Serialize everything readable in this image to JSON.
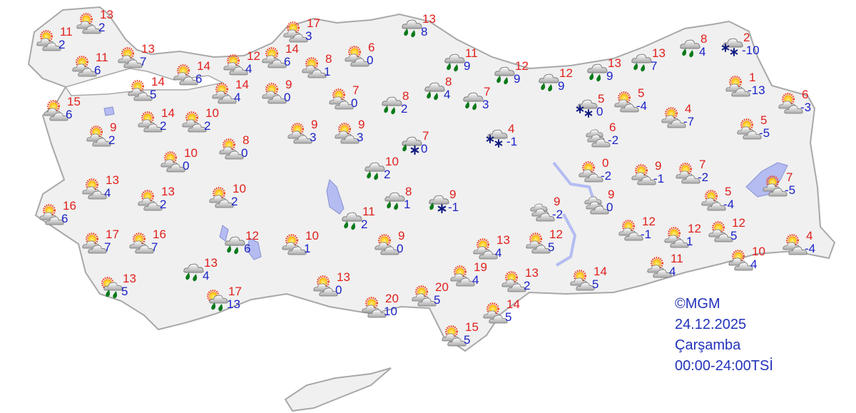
{
  "map": {
    "land_color": "#f0f0f0",
    "border_color": "#a8a8a8",
    "water_color": "#b4bcf2"
  },
  "colors": {
    "high_temp": "#e0201c",
    "low_temp": "#1a22c8",
    "rain_drop": "#0a7a1a",
    "snowflake": "#101a80"
  },
  "credit": {
    "source": "©MGM",
    "date": "24.12.2025",
    "weekday": "Çarşamba",
    "period": "00:00-24:00TSİ"
  },
  "stations": [
    {
      "type": "partly-cloudy",
      "high": "11",
      "low": "2"
    },
    {
      "type": "partly-cloudy",
      "high": "13",
      "low": "2"
    },
    {
      "type": "partly-cloudy",
      "high": "11",
      "low": "6"
    },
    {
      "type": "partly-cloudy",
      "high": "13",
      "low": "7"
    },
    {
      "type": "partly-cloudy",
      "high": "15",
      "low": "6"
    },
    {
      "type": "partly-cloudy",
      "high": "14",
      "low": "5"
    },
    {
      "type": "partly-cloudy",
      "high": "14",
      "low": "6"
    },
    {
      "type": "partly-cloudy",
      "high": "12",
      "low": "4"
    },
    {
      "type": "partly-cloudy",
      "high": "14",
      "low": "6"
    },
    {
      "type": "partly-cloudy",
      "high": "17",
      "low": "3"
    },
    {
      "type": "partly-cloudy",
      "high": "8",
      "low": "1"
    },
    {
      "type": "partly-cloudy",
      "high": "6",
      "low": "0"
    },
    {
      "type": "partly-cloudy",
      "high": "14",
      "low": "4"
    },
    {
      "type": "partly-cloudy",
      "high": "9",
      "low": "0"
    },
    {
      "type": "partly-cloudy",
      "high": "7",
      "low": "0"
    },
    {
      "type": "partly-cloudy",
      "high": "14",
      "low": "2"
    },
    {
      "type": "partly-cloudy",
      "high": "10",
      "low": "2"
    },
    {
      "type": "partly-cloudy",
      "high": "9",
      "low": "2"
    },
    {
      "type": "partly-cloudy",
      "high": "8",
      "low": "0"
    },
    {
      "type": "partly-cloudy",
      "high": "10",
      "low": "0"
    },
    {
      "type": "partly-cloudy",
      "high": "9",
      "low": "3"
    },
    {
      "type": "partly-cloudy",
      "high": "9",
      "low": "3"
    },
    {
      "type": "rain",
      "high": "8",
      "low": "2"
    },
    {
      "type": "rain",
      "high": "13",
      "low": "8"
    },
    {
      "type": "rain",
      "high": "11",
      "low": "9"
    },
    {
      "type": "rain",
      "high": "8",
      "low": "4"
    },
    {
      "type": "rain",
      "high": "7",
      "low": "3"
    },
    {
      "type": "rain",
      "high": "12",
      "low": "9"
    },
    {
      "type": "rain",
      "high": "12",
      "low": "9"
    },
    {
      "type": "rain",
      "high": "13",
      "low": "9"
    },
    {
      "type": "rain",
      "high": "13",
      "low": "7"
    },
    {
      "type": "rain",
      "high": "8",
      "low": "4"
    },
    {
      "type": "snow",
      "high": "2",
      "low": "-10"
    },
    {
      "type": "partly-cloudy",
      "high": "1",
      "low": "-13"
    },
    {
      "type": "partly-cloudy",
      "high": "6",
      "low": "-3"
    },
    {
      "type": "partly-cloudy",
      "high": "5",
      "low": "-5"
    },
    {
      "type": "snow",
      "high": "5",
      "low": "0"
    },
    {
      "type": "partly-cloudy",
      "high": "5",
      "low": "-4"
    },
    {
      "type": "partly-cloudy",
      "high": "4",
      "low": "-7"
    },
    {
      "type": "cloudy",
      "high": "6",
      "low": "-2"
    },
    {
      "type": "snow",
      "high": "4",
      "low": "-1"
    },
    {
      "type": "rain-snow",
      "high": "7",
      "low": "0"
    },
    {
      "type": "rain",
      "high": "10",
      "low": "2"
    },
    {
      "type": "rain",
      "high": "8",
      "low": "1"
    },
    {
      "type": "rain-snow",
      "high": "9",
      "low": "-1"
    },
    {
      "type": "rain",
      "high": "11",
      "low": "2"
    },
    {
      "type": "partly-cloudy",
      "high": "13",
      "low": "4"
    },
    {
      "type": "partly-cloudy",
      "high": "13",
      "low": "2"
    },
    {
      "type": "partly-cloudy",
      "high": "10",
      "low": "2"
    },
    {
      "type": "partly-cloudy",
      "high": "16",
      "low": "6"
    },
    {
      "type": "partly-cloudy",
      "high": "17",
      "low": "7"
    },
    {
      "type": "partly-cloudy",
      "high": "16",
      "low": "7"
    },
    {
      "type": "rain",
      "high": "12",
      "low": "6"
    },
    {
      "type": "partly-cloudy",
      "high": "10",
      "low": "1"
    },
    {
      "type": "partly-cloudy",
      "high": "9",
      "low": "0"
    },
    {
      "type": "rain",
      "high": "13",
      "low": "4"
    },
    {
      "type": "sun-rain",
      "high": "13",
      "low": "5"
    },
    {
      "type": "sun-rain",
      "high": "17",
      "low": "13"
    },
    {
      "type": "partly-cloudy",
      "high": "13",
      "low": "0"
    },
    {
      "type": "partly-cloudy",
      "high": "20",
      "low": "10"
    },
    {
      "type": "partly-cloudy",
      "high": "20",
      "low": "5"
    },
    {
      "type": "partly-cloudy",
      "high": "0",
      "low": "-2"
    },
    {
      "type": "partly-cloudy",
      "high": "9",
      "low": "-1"
    },
    {
      "type": "partly-cloudy",
      "high": "7",
      "low": "-2"
    },
    {
      "type": "partly-cloudy",
      "high": "7",
      "low": "-5"
    },
    {
      "type": "partly-cloudy",
      "high": "5",
      "low": "-4"
    },
    {
      "type": "cloudy",
      "high": "9",
      "low": "-2"
    },
    {
      "type": "cloudy",
      "high": "9",
      "low": "0"
    },
    {
      "type": "partly-cloudy",
      "high": "12",
      "low": "-1"
    },
    {
      "type": "partly-cloudy",
      "high": "12",
      "low": "1"
    },
    {
      "type": "partly-cloudy",
      "high": "12",
      "low": "5"
    },
    {
      "type": "partly-cloudy",
      "high": "4",
      "low": "-4"
    },
    {
      "type": "partly-cloudy",
      "high": "13",
      "low": "4"
    },
    {
      "type": "partly-cloudy",
      "high": "12",
      "low": "5"
    },
    {
      "type": "partly-cloudy",
      "high": "19",
      "low": "4"
    },
    {
      "type": "partly-cloudy",
      "high": "13",
      "low": "2"
    },
    {
      "type": "partly-cloudy",
      "high": "14",
      "low": "5"
    },
    {
      "type": "partly-cloudy",
      "high": "11",
      "low": "4"
    },
    {
      "type": "partly-cloudy",
      "high": "10",
      "low": "4"
    },
    {
      "type": "partly-cloudy",
      "high": "14",
      "low": "5"
    },
    {
      "type": "partly-cloudy",
      "high": "15",
      "low": "5"
    }
  ]
}
